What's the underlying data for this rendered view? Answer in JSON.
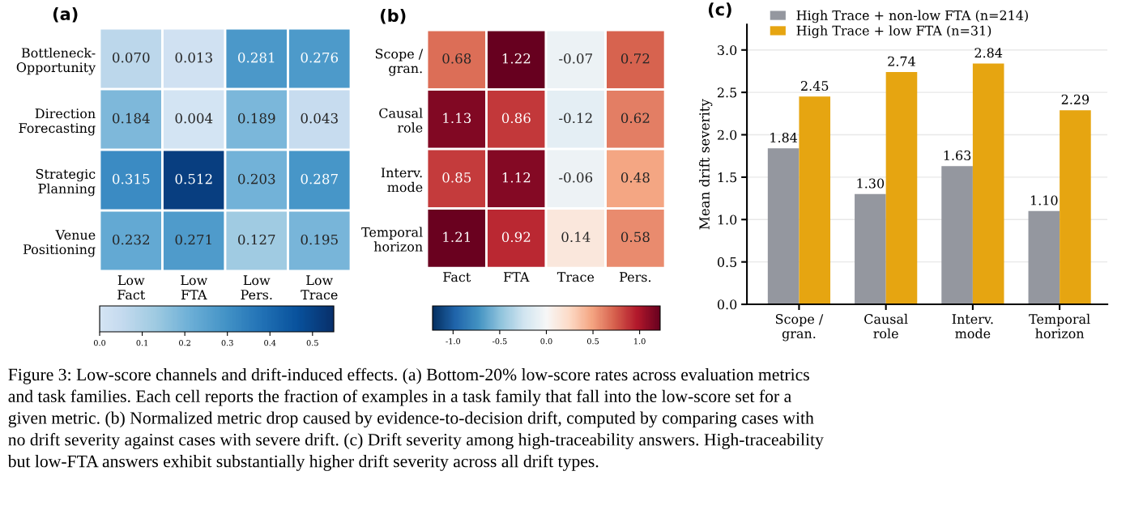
{
  "chart_data": [
    {
      "type": "heatmap",
      "title": "(a)",
      "categories": [
        "Low\nFact",
        "Low\nFTA",
        "Low\nPers.",
        "Low\nTrace"
      ],
      "y_categories": [
        "Bottleneck-\nOpportunity",
        "Direction\nForecasting",
        "Strategic\nPlanning",
        "Venue\nPositioning"
      ],
      "cells": [
        [
          0.07,
          0.013,
          0.281,
          0.276
        ],
        [
          0.184,
          0.004,
          0.189,
          0.043
        ],
        [
          0.315,
          0.512,
          0.203,
          0.287
        ],
        [
          0.232,
          0.271,
          0.127,
          0.195
        ]
      ],
      "cell_labels": [
        [
          "0.070",
          "0.013",
          "0.281",
          "0.276"
        ],
        [
          "0.184",
          "0.004",
          "0.189",
          "0.043"
        ],
        [
          "0.315",
          "0.512",
          "0.203",
          "0.287"
        ],
        [
          "0.232",
          "0.271",
          "0.127",
          "0.195"
        ]
      ],
      "clim": [
        0,
        0.55
      ],
      "cticks": [
        {
          "value": 0,
          "label": "0.0"
        },
        0.1,
        0.2,
        0.3,
        0.4,
        0.5
      ]
    },
    {
      "type": "heatmap",
      "title": "(b)",
      "categories": [
        "Fact",
        "FTA",
        "Trace",
        "Pers."
      ],
      "y_categories": [
        "Scope /\ngran.",
        "Causal\nrole",
        "Interv.\nmode",
        "Temporal\nhorizon"
      ],
      "cells": [
        [
          0.68,
          1.22,
          -0.07,
          0.72
        ],
        [
          1.13,
          0.86,
          -0.12,
          0.62
        ],
        [
          0.85,
          1.12,
          -0.06,
          0.48
        ],
        [
          1.21,
          0.92,
          0.14,
          0.58
        ]
      ],
      "cell_labels": [
        [
          "0.68",
          "1.22",
          "-0.07",
          "0.72"
        ],
        [
          "1.13",
          "0.86",
          "-0.12",
          "0.62"
        ],
        [
          "0.85",
          "1.12",
          "-0.06",
          "0.48"
        ],
        [
          "1.21",
          "0.92",
          "0.14",
          "0.58"
        ]
      ],
      "clim": [
        -1.22,
        1.22
      ],
      "cticks": [
        {
          "value": -1.0,
          "label": "-1.0"
        },
        {
          "value": -0.5,
          "label": "-0.5"
        },
        {
          "value": 0,
          "label": "0.0"
        },
        0.5,
        {
          "value": 1,
          "label": "1.0"
        }
      ]
    },
    {
      "type": "bar",
      "title": "(c)",
      "ylabel": "Mean drift severity",
      "categories": [
        "Scope /\ngran.",
        "Causal\nrole",
        "Interv.\nmode",
        "Temporal\nhorizon"
      ],
      "series": [
        {
          "name": "High Trace + non-low FTA (n=214)",
          "color": "#94979f",
          "values": [
            1.84,
            1.3,
            1.63,
            1.1
          ],
          "value_labels": [
            "1.84",
            "1.30",
            "1.63",
            "1.10"
          ]
        },
        {
          "name": "High Trace + low FTA (n=31)",
          "color": "#e6a511",
          "values": [
            2.45,
            2.74,
            2.84,
            2.29
          ],
          "value_labels": [
            "2.45",
            "2.74",
            "2.84",
            "2.29"
          ]
        }
      ],
      "ylim": [
        0,
        3.3
      ],
      "yticks": [
        {
          "value": 0,
          "label": "0.0"
        },
        0.5,
        {
          "value": 1,
          "label": "1.0"
        },
        1.5,
        {
          "value": 2,
          "label": "2.0"
        },
        2.5,
        {
          "value": 3,
          "label": "3.0"
        }
      ],
      "grid": "y",
      "legend": "top left",
      "annotations": [
        "Figure 3: Low-score channels and drift-induced effects. (a) Bottom-20% low-score rates across evaluation metrics\nand task families. Each cell reports the fraction of examples in a task family that fall into the low-score set for a\ngiven metric. (b) Normalized metric drop caused by evidence-to-decision drift, computed by comparing cases with\nno drift severity against cases with severe drift. (c) Drift severity among high-traceability answers. High-traceability\nbut low-FTA answers exhibit substantially higher drift severity across all drift types."
      ]
    }
  ]
}
